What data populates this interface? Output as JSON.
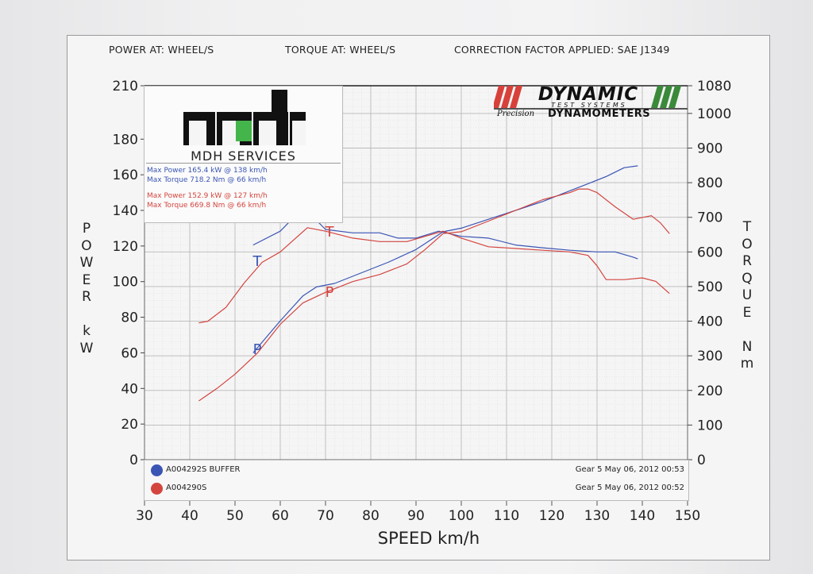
{
  "header": {
    "power": "POWER AT: WHEEL/S",
    "torque": "TORQUE AT: WHEEL/S",
    "correction": "CORRECTION FACTOR APPLIED: SAE J1349"
  },
  "logo": {
    "mark": "mdh",
    "name": "MDH SERVICES",
    "run1": {
      "max_power": "Max Power 165.4 kW @ 138 km/h",
      "max_torque": "Max Torque 718.2 Nm @ 66 km/h"
    },
    "run2": {
      "max_power": "Max Power 152.9 kW @ 127 km/h",
      "max_torque": "Max Torque 669.8 Nm @ 66 km/h"
    }
  },
  "brand": {
    "title": "DYNAMIC",
    "sub": "TEST SYSTEMS",
    "precision": "Precision",
    "dyn": "DYNAMOMETERS"
  },
  "legend": [
    {
      "name": "A004292S BUFFER",
      "info": "Gear 5 May 06, 2012 00:53",
      "color": "#3a55b4"
    },
    {
      "name": "A004290S",
      "info": "Gear 5 May 06, 2012 00:52",
      "color": "#d4453e"
    }
  ],
  "axis_words": {
    "left": [
      "P",
      "O",
      "W",
      "E",
      "R",
      "",
      "k",
      "W"
    ],
    "right": [
      "T",
      "O",
      "R",
      "Q",
      "U",
      "E",
      "",
      "N",
      "m"
    ]
  },
  "chart_data": {
    "type": "line",
    "xlabel": "SPEED km/h",
    "ylabel_left": "POWER kW",
    "ylabel_right": "TORQUE Nm",
    "xlim": [
      30,
      150
    ],
    "ylim_left": [
      0,
      210
    ],
    "ylim_right": [
      0,
      1080
    ],
    "x_ticks": [
      30,
      40,
      50,
      60,
      70,
      80,
      90,
      100,
      110,
      120,
      130,
      140,
      150
    ],
    "y_ticks_left": [
      0,
      20,
      40,
      60,
      80,
      100,
      120,
      140,
      160,
      180,
      210
    ],
    "y_ticks_right": [
      0,
      100,
      200,
      300,
      400,
      500,
      600,
      700,
      800,
      900,
      1000,
      1080
    ],
    "grid": true,
    "curve_labels": {
      "torque": "T",
      "power": "P"
    },
    "series": [
      {
        "name": "A004292S BUFFER",
        "kind": "power",
        "axis": "left",
        "color": "#3a55b4",
        "x": [
          54,
          60,
          65,
          68,
          72,
          78,
          84,
          90,
          96,
          100,
          106,
          112,
          118,
          124,
          128,
          132,
          136,
          139
        ],
        "y": [
          60,
          78,
          92,
          97,
          99,
          105,
          111,
          118,
          128,
          130,
          135,
          140,
          145,
          151,
          155,
          159,
          164,
          165
        ]
      },
      {
        "name": "A004292S BUFFER",
        "kind": "torque",
        "axis": "right",
        "color": "#3a55b4",
        "x": [
          54,
          60,
          63,
          66,
          70,
          76,
          82,
          86,
          90,
          95,
          100,
          106,
          112,
          118,
          124,
          130,
          134,
          138,
          139
        ],
        "y": [
          620,
          660,
          700,
          718,
          665,
          655,
          655,
          640,
          640,
          660,
          645,
          640,
          620,
          612,
          605,
          600,
          600,
          585,
          580
        ]
      },
      {
        "name": "A004290S",
        "kind": "power",
        "axis": "left",
        "color": "#d4453e",
        "x": [
          42,
          46,
          50,
          55,
          60,
          65,
          70,
          76,
          82,
          88,
          92,
          96,
          100,
          106,
          112,
          118,
          124,
          126,
          128,
          130,
          134,
          138,
          142,
          144,
          146
        ],
        "y": [
          33,
          40,
          48,
          60,
          76,
          88,
          94,
          100,
          104,
          110,
          118,
          127,
          128,
          134,
          140,
          146,
          150,
          152,
          152,
          150,
          142,
          135,
          137,
          133,
          127
        ]
      },
      {
        "name": "A004290S",
        "kind": "torque",
        "axis": "right",
        "color": "#d4453e",
        "x": [
          42,
          44,
          48,
          52,
          56,
          60,
          66,
          70,
          76,
          82,
          88,
          92,
          96,
          100,
          106,
          112,
          118,
          124,
          128,
          130,
          132,
          136,
          140,
          143,
          146
        ],
        "y": [
          395,
          400,
          440,
          510,
          570,
          600,
          670,
          660,
          640,
          630,
          630,
          645,
          660,
          640,
          615,
          610,
          605,
          600,
          590,
          560,
          520,
          520,
          525,
          515,
          480
        ]
      }
    ]
  }
}
